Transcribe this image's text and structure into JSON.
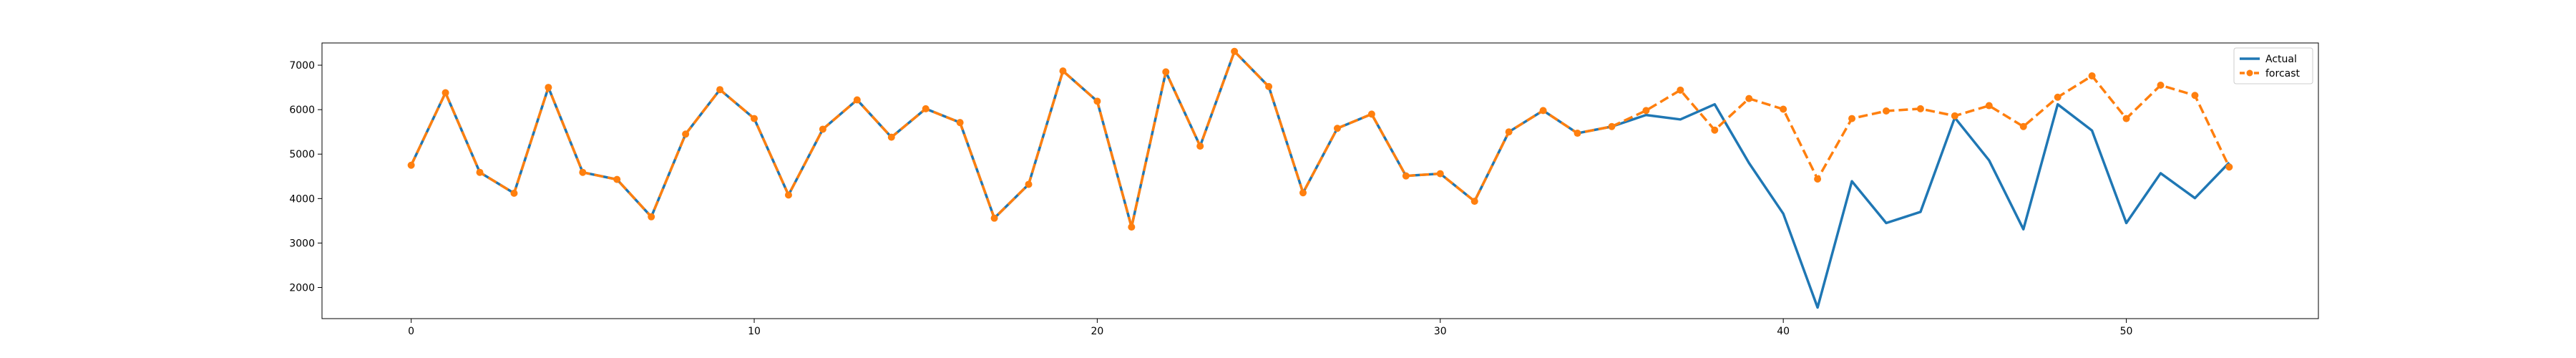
{
  "chart_data": {
    "type": "line",
    "title": "",
    "xlabel": "",
    "ylabel": "",
    "xlim": [
      -2.6,
      55.6
    ],
    "ylim": [
      1300,
      7500
    ],
    "xticks": [
      0,
      10,
      20,
      30,
      40,
      50
    ],
    "yticks": [
      2000,
      3000,
      4000,
      5000,
      6000,
      7000
    ],
    "grid": false,
    "legend_position": "top-right",
    "series": [
      {
        "name": "Actual",
        "color": "#1f77b4",
        "style": "solid",
        "marker": "none",
        "x": [
          0,
          1,
          2,
          3,
          4,
          5,
          6,
          7,
          8,
          9,
          10,
          11,
          12,
          13,
          14,
          15,
          16,
          17,
          18,
          19,
          20,
          21,
          22,
          23,
          24,
          25,
          26,
          27,
          28,
          29,
          30,
          31,
          32,
          33,
          34,
          35,
          36,
          37,
          38,
          39,
          40,
          41,
          42,
          43,
          44,
          45,
          46,
          47,
          48,
          49,
          50,
          51,
          52,
          53
        ],
        "values": [
          4750,
          6380,
          4590,
          4120,
          6500,
          4590,
          4430,
          3590,
          5450,
          6450,
          5800,
          4080,
          5560,
          6220,
          5380,
          6020,
          5710,
          3560,
          4320,
          6870,
          6190,
          3360,
          6850,
          5180,
          7310,
          6520,
          4130,
          5580,
          5900,
          4510,
          4560,
          3940,
          5500,
          5980,
          5470,
          5620,
          5880,
          5780,
          6120,
          4800,
          3660,
          1550,
          4390,
          3450,
          3700,
          5820,
          4860,
          3310,
          6120,
          5530,
          3450,
          4570,
          4010,
          4810
        ]
      },
      {
        "name": "forcast",
        "color": "#ff7f0e",
        "style": "dashed",
        "marker": "circle",
        "x": [
          0,
          1,
          2,
          3,
          4,
          5,
          6,
          7,
          8,
          9,
          10,
          11,
          12,
          13,
          14,
          15,
          16,
          17,
          18,
          19,
          20,
          21,
          22,
          23,
          24,
          25,
          26,
          27,
          28,
          29,
          30,
          31,
          32,
          33,
          34,
          35,
          36,
          37,
          38,
          39,
          40,
          41,
          42,
          43,
          44,
          45,
          46,
          47,
          48,
          49,
          50,
          51,
          52,
          53
        ],
        "values": [
          4750,
          6380,
          4590,
          4120,
          6500,
          4590,
          4430,
          3590,
          5450,
          6450,
          5800,
          4080,
          5560,
          6220,
          5380,
          6020,
          5710,
          3560,
          4320,
          6870,
          6190,
          3360,
          6850,
          5180,
          7310,
          6520,
          4130,
          5580,
          5900,
          4510,
          4560,
          3940,
          5500,
          5980,
          5470,
          5620,
          5980,
          6440,
          5540,
          6250,
          6010,
          4440,
          5800,
          5970,
          6020,
          5860,
          6090,
          5620,
          6280,
          6760,
          5800,
          6550,
          6320,
          4710
        ]
      }
    ]
  }
}
